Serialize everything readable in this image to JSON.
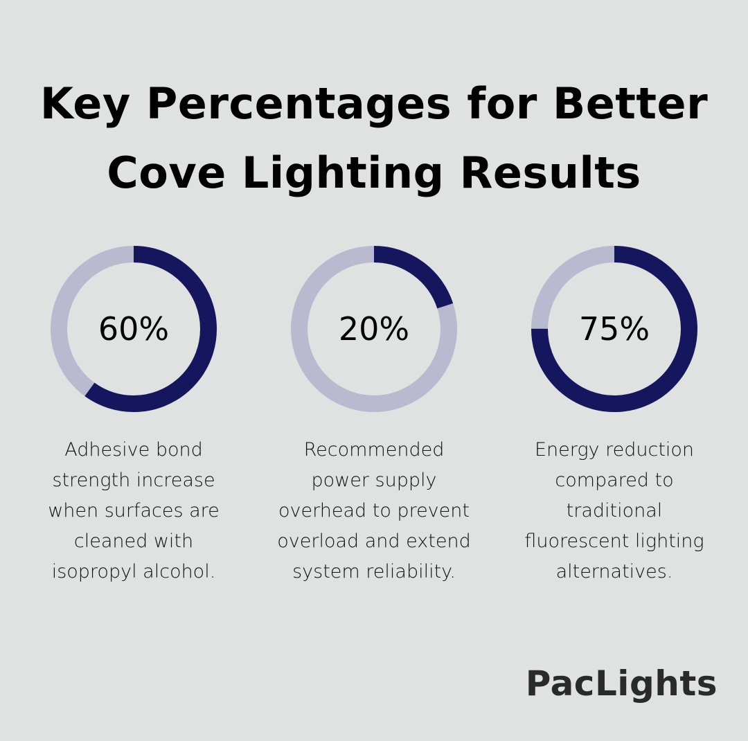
{
  "title_lines": [
    "Key Percentages for Better",
    "Cove Lighting Results"
  ],
  "colors": {
    "background": "#e0e2e1",
    "filled": "#16165e",
    "remaining": "#b9b9cf"
  },
  "chart_data": {
    "type": "donut",
    "title": "Key Percentages for Better Cove Lighting Results",
    "items": [
      {
        "value": 60,
        "label": "60%",
        "description": "Adhesive bond strength increase when surfaces are cleaned with isopropyl alcohol.",
        "lines": [
          "Adhesive bond",
          "strength increase",
          "when surfaces are",
          "cleaned with",
          "isopropyl alcohol."
        ]
      },
      {
        "value": 20,
        "label": "20%",
        "description": "Recommended power supply overhead to prevent overload and extend system reliability.",
        "lines": [
          "Recommended",
          "power supply",
          "overhead to prevent",
          "overload and extend",
          "system reliability."
        ]
      },
      {
        "value": 75,
        "label": "75%",
        "description": "Energy reduction compared to traditional fluorescent lighting alternatives.",
        "lines": [
          "Energy reduction",
          "compared to",
          "traditional",
          "fluorescent lighting",
          "alternatives."
        ]
      }
    ]
  },
  "logo": "PacLights"
}
